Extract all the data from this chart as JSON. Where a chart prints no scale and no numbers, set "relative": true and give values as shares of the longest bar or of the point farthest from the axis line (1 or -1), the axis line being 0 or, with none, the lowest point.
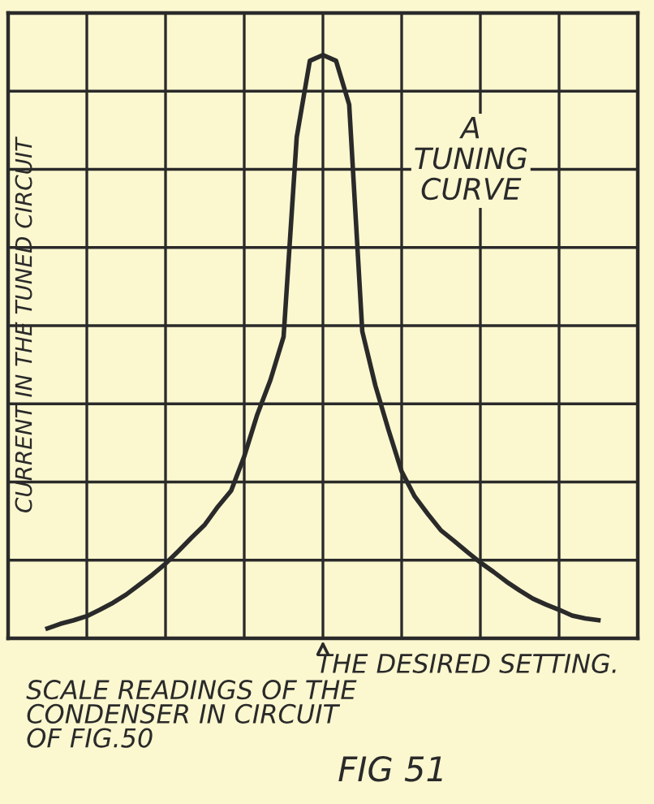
{
  "chart_data": {
    "type": "line",
    "relative": true,
    "ylabel": "CURRENT IN THE TUNED CIRCUIT",
    "xlabel": "SCALE READINGS OF THE\nCONDENSER IN CIRCUIT\nOF FIG.50",
    "annotations": [
      "A\nTUNING\nCURVE",
      "THE DESIRED SETTING.",
      "FIG 51"
    ],
    "categories": [
      null,
      null,
      null,
      null,
      null,
      null,
      null,
      null,
      null,
      null,
      null,
      null,
      null,
      null,
      null,
      null,
      null,
      null,
      null,
      null,
      null,
      null,
      null,
      null,
      null,
      null,
      null,
      null,
      null,
      null,
      null,
      null,
      null,
      null,
      null,
      null,
      null,
      null,
      null,
      null,
      null,
      null,
      null
    ],
    "series": [
      {
        "color": "#2a2a2a",
        "values": [
          0.017,
          0.025,
          0.031,
          0.038,
          0.049,
          0.061,
          0.075,
          0.092,
          0.109,
          0.128,
          0.15,
          0.173,
          0.195,
          0.226,
          0.253,
          0.312,
          0.384,
          0.443,
          0.517,
          0.859,
          0.99,
          1,
          0.99,
          0.915,
          0.526,
          0.433,
          0.357,
          0.286,
          0.243,
          0.213,
          0.185,
          0.167,
          0.148,
          0.13,
          0.114,
          0.097,
          0.082,
          0.068,
          0.058,
          0.049,
          0.039,
          0.034,
          0.031
        ]
      }
    ],
    "grid": true,
    "legend": false,
    "marker": "none",
    "line_style": "solid",
    "tick_labels": false
  }
}
